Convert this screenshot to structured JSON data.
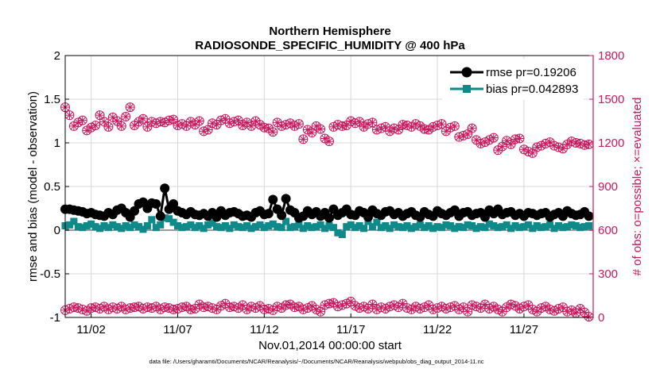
{
  "chart_data": {
    "type": "line",
    "title": "Northern Hemisphere",
    "subtitle": "RADIOSONDE_SPECIFIC_HUMIDITY @ 400 hPa",
    "xlabel": "Nov.01,2014 00:00:00 start",
    "ylabel": "rmse and bias (model - observation)",
    "ylabel_right": "# of obs: o=possible; ×=evaluated",
    "footnote": "data file: /Users/gharamti/Documents/NCAR/Reanalysis/~/Documents/NCAR/Reanalysis/webpub/obs_diag_output_2014-11.nc",
    "xlim": [
      0.5,
      31
    ],
    "ylim": [
      -1,
      2
    ],
    "ylim_right": [
      0,
      1800
    ],
    "x_ticks": [
      2,
      7,
      12,
      17,
      22,
      27
    ],
    "x_tick_labels": [
      "11/02",
      "11/07",
      "11/12",
      "11/17",
      "11/22",
      "11/27"
    ],
    "y_ticks": [
      -1,
      -0.5,
      0,
      0.5,
      1,
      1.5,
      2
    ],
    "y_tick_labels": [
      "-1",
      "-0.5",
      "0",
      "0.5",
      "1",
      "1.5",
      "2"
    ],
    "y_right_ticks": [
      0,
      300,
      600,
      900,
      1200,
      1500,
      1800
    ],
    "y_right_tick_labels": [
      "0",
      "300",
      "600",
      "900",
      "1200",
      "1500",
      "1800"
    ],
    "legend": [
      {
        "label": "rmse pr=0.19206",
        "color": "#000000",
        "marker": "circle"
      },
      {
        "label": "bias pr=0.042893",
        "color": "#0e8a8a",
        "marker": "square"
      }
    ],
    "legend_position": "top-right",
    "colors": {
      "rmse": "#000000",
      "bias": "#0e8a8a",
      "obs": "#c8185e",
      "zero_line": "#9a9a9a",
      "grid": "#d8d8d8"
    },
    "series": [
      {
        "name": "rmse",
        "x_start": 0.5,
        "x_step": 0.25,
        "values": [
          0.24,
          0.24,
          0.23,
          0.22,
          0.21,
          0.19,
          0.2,
          0.18,
          0.17,
          0.16,
          0.2,
          0.18,
          0.23,
          0.25,
          0.2,
          0.15,
          0.22,
          0.3,
          0.32,
          0.25,
          0.31,
          0.3,
          0.16,
          0.48,
          0.24,
          0.3,
          0.22,
          0.2,
          0.18,
          0.21,
          0.18,
          0.17,
          0.19,
          0.16,
          0.2,
          0.15,
          0.22,
          0.17,
          0.2,
          0.21,
          0.19,
          0.16,
          0.17,
          0.15,
          0.2,
          0.22,
          0.18,
          0.19,
          0.35,
          0.24,
          0.17,
          0.36,
          0.23,
          0.2,
          0.14,
          0.16,
          0.22,
          0.18,
          0.21,
          0.16,
          0.2,
          0.14,
          0.24,
          0.17,
          0.2,
          0.24,
          0.18,
          0.17,
          0.22,
          0.2,
          0.15,
          0.23,
          0.19,
          0.17,
          0.21,
          0.22,
          0.18,
          0.2,
          0.16,
          0.19,
          0.21,
          0.17,
          0.15,
          0.21,
          0.18,
          0.16,
          0.22,
          0.19,
          0.17,
          0.2,
          0.23,
          0.16,
          0.2,
          0.21,
          0.17,
          0.19,
          0.2,
          0.15,
          0.23,
          0.19,
          0.24,
          0.18,
          0.2,
          0.21,
          0.17,
          0.19,
          0.16,
          0.2,
          0.19,
          0.17,
          0.19,
          0.2,
          0.15,
          0.18,
          0.2,
          0.16,
          0.22,
          0.19,
          0.17,
          0.18,
          0.21,
          0.16
        ]
      },
      {
        "name": "bias",
        "x_start": 0.5,
        "x_step": 0.25,
        "values": [
          0.05,
          0.06,
          0.1,
          0.04,
          0.03,
          0.05,
          0.07,
          0.04,
          0.02,
          0.05,
          0.03,
          0.06,
          0.04,
          0.02,
          0.05,
          0.03,
          0.06,
          0.04,
          0.01,
          0.05,
          0.12,
          0.03,
          0.06,
          0.14,
          0.13,
          0.09,
          0.05,
          0.03,
          0.04,
          0.06,
          0.03,
          0.05,
          0.02,
          0.06,
          0.08,
          0.04,
          0.03,
          0.05,
          0.02,
          0.06,
          0.04,
          0.03,
          0.05,
          0.02,
          0.04,
          0.06,
          0.03,
          0.05,
          0.07,
          0.04,
          0.03,
          0.1,
          0.03,
          0.04,
          0.06,
          0.02,
          0.05,
          0.03,
          0.04,
          0.06,
          0.02,
          0.05,
          0.03,
          -0.03,
          -0.05,
          0.04,
          0.06,
          0.03,
          0.05,
          0.02,
          0.1,
          0.04,
          0.09,
          0.03,
          0.05,
          0.02,
          0.06,
          0.04,
          0.03,
          0.05,
          0.02,
          0.04,
          0.06,
          0.03,
          0.05,
          0.02,
          0.04,
          0.03,
          0.06,
          0.05,
          0.02,
          0.04,
          0.03,
          0.06,
          0.05,
          0.02,
          0.04,
          0.03,
          0.07,
          0.05,
          0.03,
          0.04,
          0.06,
          0.02,
          0.05,
          0.03,
          0.04,
          0.06,
          0.02,
          0.05,
          0.03,
          0.04,
          0.06,
          0.02,
          0.05,
          0.03,
          0.04,
          0.06,
          0.05,
          0.03,
          0.04,
          0.05
        ]
      },
      {
        "name": "obs_upper",
        "axis": "right",
        "x_start": 0.5,
        "x_step": 0.25,
        "values": [
          1445,
          1390,
          1315,
          1340,
          1355,
          1285,
          1305,
          1320,
          1390,
          1345,
          1310,
          1375,
          1350,
          1315,
          1380,
          1445,
          1320,
          1345,
          1365,
          1310,
          1345,
          1335,
          1345,
          1340,
          1355,
          1360,
          1320,
          1330,
          1315,
          1345,
          1325,
          1350,
          1280,
          1290,
          1335,
          1325,
          1355,
          1365,
          1335,
          1345,
          1355,
          1320,
          1340,
          1315,
          1350,
          1325,
          1305,
          1300,
          1275,
          1340,
          1315,
          1325,
          1335,
          1315,
          1330,
          1225,
          1290,
          1270,
          1315,
          1295,
          1230,
          1210,
          1310,
          1325,
          1315,
          1320,
          1350,
          1335,
          1345,
          1310,
          1330,
          1340,
          1290,
          1300,
          1310,
          1280,
          1300,
          1290,
          1325,
          1320,
          1310,
          1330,
          1315,
          1295,
          1290,
          1310,
          1320,
          1330,
          1280,
          1305,
          1315,
          1240,
          1250,
          1260,
          1300,
          1220,
          1195,
          1205,
          1220,
          1235,
          1150,
          1175,
          1215,
          1190,
          1225,
          1230,
          1155,
          1140,
          1130,
          1170,
          1180,
          1195,
          1205,
          1180,
          1170,
          1160,
          1190,
          1210,
          1200,
          1195,
          1185,
          1190
        ]
      },
      {
        "name": "obs_lower",
        "axis": "right",
        "x_start": 0.5,
        "x_step": 0.25,
        "values": [
          50,
          60,
          70,
          65,
          55,
          45,
          65,
          70,
          60,
          75,
          55,
          70,
          60,
          75,
          55,
          65,
          70,
          75,
          60,
          70,
          65,
          75,
          55,
          70,
          65,
          55,
          60,
          70,
          75,
          55,
          60,
          90,
          70,
          75,
          65,
          55,
          80,
          95,
          70,
          75,
          65,
          85,
          55,
          75,
          65,
          80,
          55,
          60,
          50,
          75,
          65,
          85,
          90,
          70,
          75,
          55,
          65,
          80,
          55,
          40,
          85,
          95,
          100,
          75,
          85,
          95,
          110,
          80,
          65,
          75,
          60,
          90,
          55,
          70,
          60,
          75,
          85,
          70,
          95,
          65,
          55,
          75,
          60,
          70,
          85,
          55,
          65,
          75,
          60,
          70,
          80,
          55,
          70,
          40,
          85,
          75,
          65,
          90,
          60,
          75,
          55,
          40,
          70,
          90,
          80,
          60,
          75,
          85,
          55,
          40,
          65,
          75,
          55,
          45,
          60,
          70,
          40,
          50,
          30,
          60,
          35,
          5
        ]
      }
    ]
  }
}
